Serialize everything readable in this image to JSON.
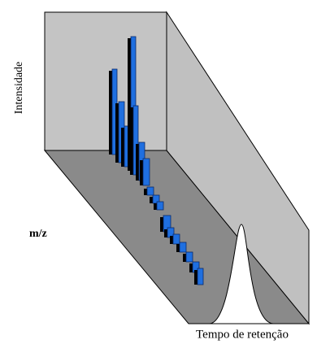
{
  "labels": {
    "y_axis": "Intensidade",
    "mz": "m/z",
    "x_axis": "Tempo de retenção"
  }
}
